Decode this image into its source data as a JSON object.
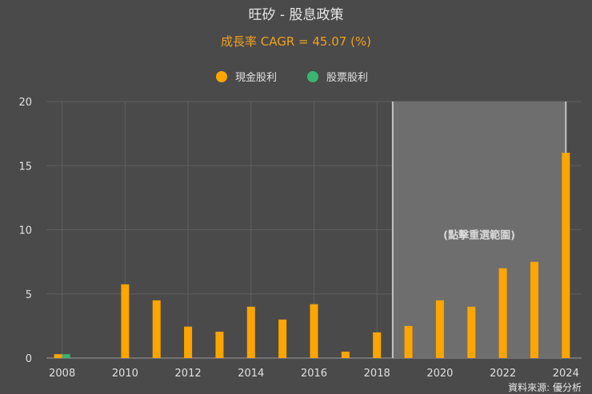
{
  "chart_data": {
    "type": "bar",
    "title": "旺矽 - 股息政策",
    "subtitle": "成長率 CAGR = 45.07 (%)",
    "x": [
      2008,
      2010,
      2011,
      2012,
      2013,
      2014,
      2015,
      2016,
      2017,
      2018,
      2019,
      2020,
      2021,
      2022,
      2023,
      2024
    ],
    "x_tick_labels": [
      "2008",
      "2010",
      "2012",
      "2014",
      "2016",
      "2018",
      "2020",
      "2022",
      "2024"
    ],
    "ylim": [
      0,
      20
    ],
    "y_ticks": [
      "0",
      "5",
      "10",
      "15",
      "20"
    ],
    "series": [
      {
        "name": "現金股利",
        "color": "#ffa500",
        "values": [
          0.3,
          5.75,
          4.5,
          2.45,
          2.05,
          4.0,
          3.0,
          4.2,
          0.5,
          2.0,
          2.5,
          4.5,
          4.0,
          7.0,
          7.5,
          16.0
        ]
      },
      {
        "name": "股票股利",
        "color": "#3cb371",
        "values": [
          0.3,
          0,
          0,
          0,
          0,
          0,
          0,
          0,
          0,
          0,
          0,
          0,
          0,
          0,
          0,
          0
        ]
      }
    ],
    "highlight_range": [
      2019,
      2024
    ],
    "highlight_label": "(點擊重選範圍)",
    "grid": true,
    "legend": "top-center"
  },
  "source_label": "資料來源: 優分析"
}
